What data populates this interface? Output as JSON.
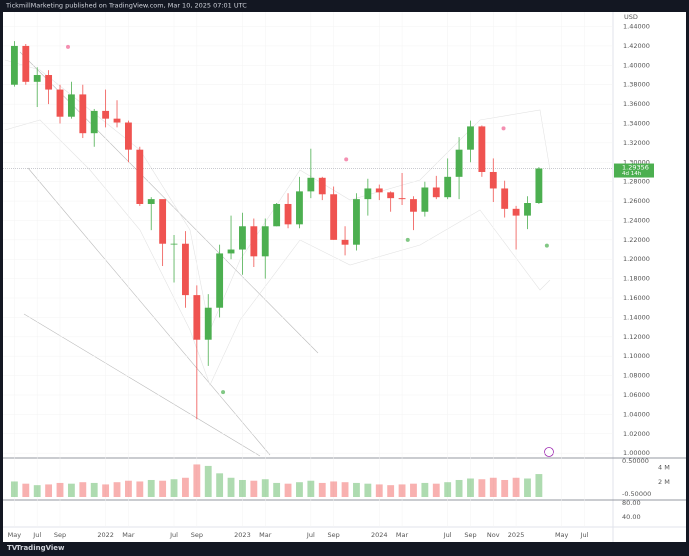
{
  "header": {
    "text": "TickmillMarketing published on TradingView.com, Mar 10, 2025 07:01 UTC"
  },
  "footer": {
    "logo": "TradingView"
  },
  "chart_data": {
    "type": "candlestick",
    "currency": "USD",
    "x": [
      0,
      1,
      2,
      3,
      4,
      5,
      6,
      7,
      8,
      9,
      10,
      11,
      12,
      13,
      14,
      15,
      16,
      17,
      18,
      19,
      20,
      21,
      22,
      23,
      24,
      25,
      26,
      27,
      28,
      29,
      30,
      31,
      32,
      33,
      34,
      35,
      36,
      37,
      38,
      39,
      40,
      41,
      42,
      43,
      44,
      45,
      46
    ],
    "open": [
      1.38,
      1.42,
      1.383,
      1.39,
      1.375,
      1.347,
      1.37,
      1.33,
      1.353,
      1.345,
      1.341,
      1.313,
      1.257,
      1.262,
      1.216,
      1.216,
      1.163,
      1.117,
      1.15,
      1.206,
      1.21,
      1.234,
      1.203,
      1.234,
      1.257,
      1.236,
      1.27,
      1.284,
      1.267,
      1.22,
      1.215,
      1.262,
      1.273,
      1.269,
      1.263,
      1.262,
      1.249,
      1.274,
      1.264,
      1.285,
      1.313,
      1.337,
      1.29,
      1.273,
      1.252,
      1.245,
      1.258
    ],
    "high": [
      1.425,
      1.422,
      1.398,
      1.395,
      1.38,
      1.383,
      1.38,
      1.355,
      1.375,
      1.364,
      1.343,
      1.316,
      1.264,
      1.26,
      1.225,
      1.229,
      1.173,
      1.164,
      1.215,
      1.245,
      1.248,
      1.242,
      1.242,
      1.258,
      1.268,
      1.285,
      1.314,
      1.285,
      1.275,
      1.234,
      1.268,
      1.283,
      1.277,
      1.27,
      1.289,
      1.265,
      1.28,
      1.286,
      1.304,
      1.326,
      1.343,
      1.338,
      1.304,
      1.281,
      1.255,
      1.265,
      1.295
    ],
    "low": [
      1.378,
      1.38,
      1.357,
      1.36,
      1.34,
      1.345,
      1.325,
      1.316,
      1.336,
      1.336,
      1.3,
      1.255,
      1.23,
      1.193,
      1.176,
      1.15,
      1.035,
      1.09,
      1.14,
      1.2,
      1.184,
      1.192,
      1.18,
      1.234,
      1.232,
      1.232,
      1.263,
      1.261,
      1.22,
      1.204,
      1.209,
      1.245,
      1.261,
      1.249,
      1.256,
      1.23,
      1.244,
      1.262,
      1.262,
      1.262,
      1.3,
      1.285,
      1.259,
      1.243,
      1.21,
      1.231,
      1.257
    ],
    "close": [
      1.42,
      1.383,
      1.39,
      1.375,
      1.347,
      1.37,
      1.33,
      1.353,
      1.345,
      1.341,
      1.313,
      1.257,
      1.262,
      1.216,
      1.216,
      1.163,
      1.117,
      1.15,
      1.206,
      1.21,
      1.234,
      1.203,
      1.234,
      1.257,
      1.236,
      1.27,
      1.284,
      1.267,
      1.22,
      1.215,
      1.262,
      1.273,
      1.269,
      1.263,
      1.262,
      1.249,
      1.274,
      1.264,
      1.285,
      1.313,
      1.337,
      1.29,
      1.273,
      1.252,
      1.245,
      1.258,
      1.29356
    ],
    "volume": [
      2.1,
      1.8,
      1.6,
      1.7,
      1.9,
      1.8,
      2.0,
      1.9,
      1.7,
      2.0,
      2.2,
      2.1,
      2.3,
      2.2,
      2.4,
      2.6,
      4.4,
      4.2,
      3.2,
      2.6,
      2.3,
      2.2,
      2.4,
      1.9,
      1.8,
      2.0,
      2.2,
      1.9,
      2.1,
      2.0,
      1.9,
      1.8,
      1.7,
      1.6,
      1.7,
      1.8,
      1.9,
      1.8,
      2.0,
      2.3,
      2.5,
      2.4,
      2.6,
      2.3,
      2.6,
      2.5,
      3.1
    ],
    "up_color": "#4caf50",
    "down_color": "#ef5350",
    "xlim": [
      -1,
      52.5
    ],
    "xticks": [
      {
        "value": 0,
        "label": "May"
      },
      {
        "value": 2,
        "label": "Jul"
      },
      {
        "value": 4,
        "label": "Sep"
      },
      {
        "value": 8,
        "label": "2022"
      },
      {
        "value": 10,
        "label": "Mar"
      },
      {
        "value": 14,
        "label": "Jul"
      },
      {
        "value": 16,
        "label": "Sep"
      },
      {
        "value": 20,
        "label": "2023"
      },
      {
        "value": 22,
        "label": "Mar"
      },
      {
        "value": 26,
        "label": "Jul"
      },
      {
        "value": 28,
        "label": "Sep"
      },
      {
        "value": 32,
        "label": "2024"
      },
      {
        "value": 34,
        "label": "Mar"
      },
      {
        "value": 38,
        "label": "Jul"
      },
      {
        "value": 40,
        "label": "Sep"
      },
      {
        "value": 42,
        "label": "Nov"
      },
      {
        "value": 44,
        "label": "2025"
      },
      {
        "value": 48,
        "label": "May"
      },
      {
        "value": 50,
        "label": "Jul"
      }
    ],
    "ylim": [
      0.995,
      1.455
    ],
    "yticks": [
      {
        "value": 1.0,
        "label": "1.00000"
      },
      {
        "value": 1.02,
        "label": "1.02000"
      },
      {
        "value": 1.04,
        "label": "1.04000"
      },
      {
        "value": 1.06,
        "label": "1.06000"
      },
      {
        "value": 1.08,
        "label": "1.08000"
      },
      {
        "value": 1.1,
        "label": "1.10000"
      },
      {
        "value": 1.12,
        "label": "1.12000"
      },
      {
        "value": 1.14,
        "label": "1.14000"
      },
      {
        "value": 1.16,
        "label": "1.16000"
      },
      {
        "value": 1.18,
        "label": "1.18000"
      },
      {
        "value": 1.2,
        "label": "1.20000"
      },
      {
        "value": 1.22,
        "label": "1.22000"
      },
      {
        "value": 1.24,
        "label": "1.24000"
      },
      {
        "value": 1.26,
        "label": "1.26000"
      },
      {
        "value": 1.28,
        "label": "1.28000"
      },
      {
        "value": 1.3,
        "label": "1.30000"
      },
      {
        "value": 1.32,
        "label": "1.32000"
      },
      {
        "value": 1.34,
        "label": "1.34000"
      },
      {
        "value": 1.36,
        "label": "1.36000"
      },
      {
        "value": 1.38,
        "label": "1.38000"
      },
      {
        "value": 1.4,
        "label": "1.40000"
      },
      {
        "value": 1.42,
        "label": "1.42000"
      },
      {
        "value": 1.44,
        "label": "1.44000"
      }
    ],
    "last_price": {
      "value": 1.29356,
      "label": "1.29356",
      "countdown": "4d 14h"
    },
    "vlim": [
      0,
      5
    ],
    "vticks": [
      {
        "value": 2,
        "label": "2 M"
      },
      {
        "value": 4,
        "label": "4 M"
      }
    ],
    "osc_labels": [
      "0.50000",
      "-0.50000",
      "80.00",
      "40.00"
    ],
    "signals": [
      {
        "x": 4.7,
        "y": 1.419,
        "color": "#f48fb1"
      },
      {
        "x": 29.1,
        "y": 1.303,
        "color": "#f48fb1"
      },
      {
        "x": 42.9,
        "y": 1.335,
        "color": "#f48fb1"
      },
      {
        "x": 18.3,
        "y": 1.063,
        "color": "#81c784"
      },
      {
        "x": 34.5,
        "y": 1.22,
        "color": "#81c784"
      },
      {
        "x": 46.7,
        "y": 1.214,
        "color": "#81c784"
      }
    ]
  }
}
